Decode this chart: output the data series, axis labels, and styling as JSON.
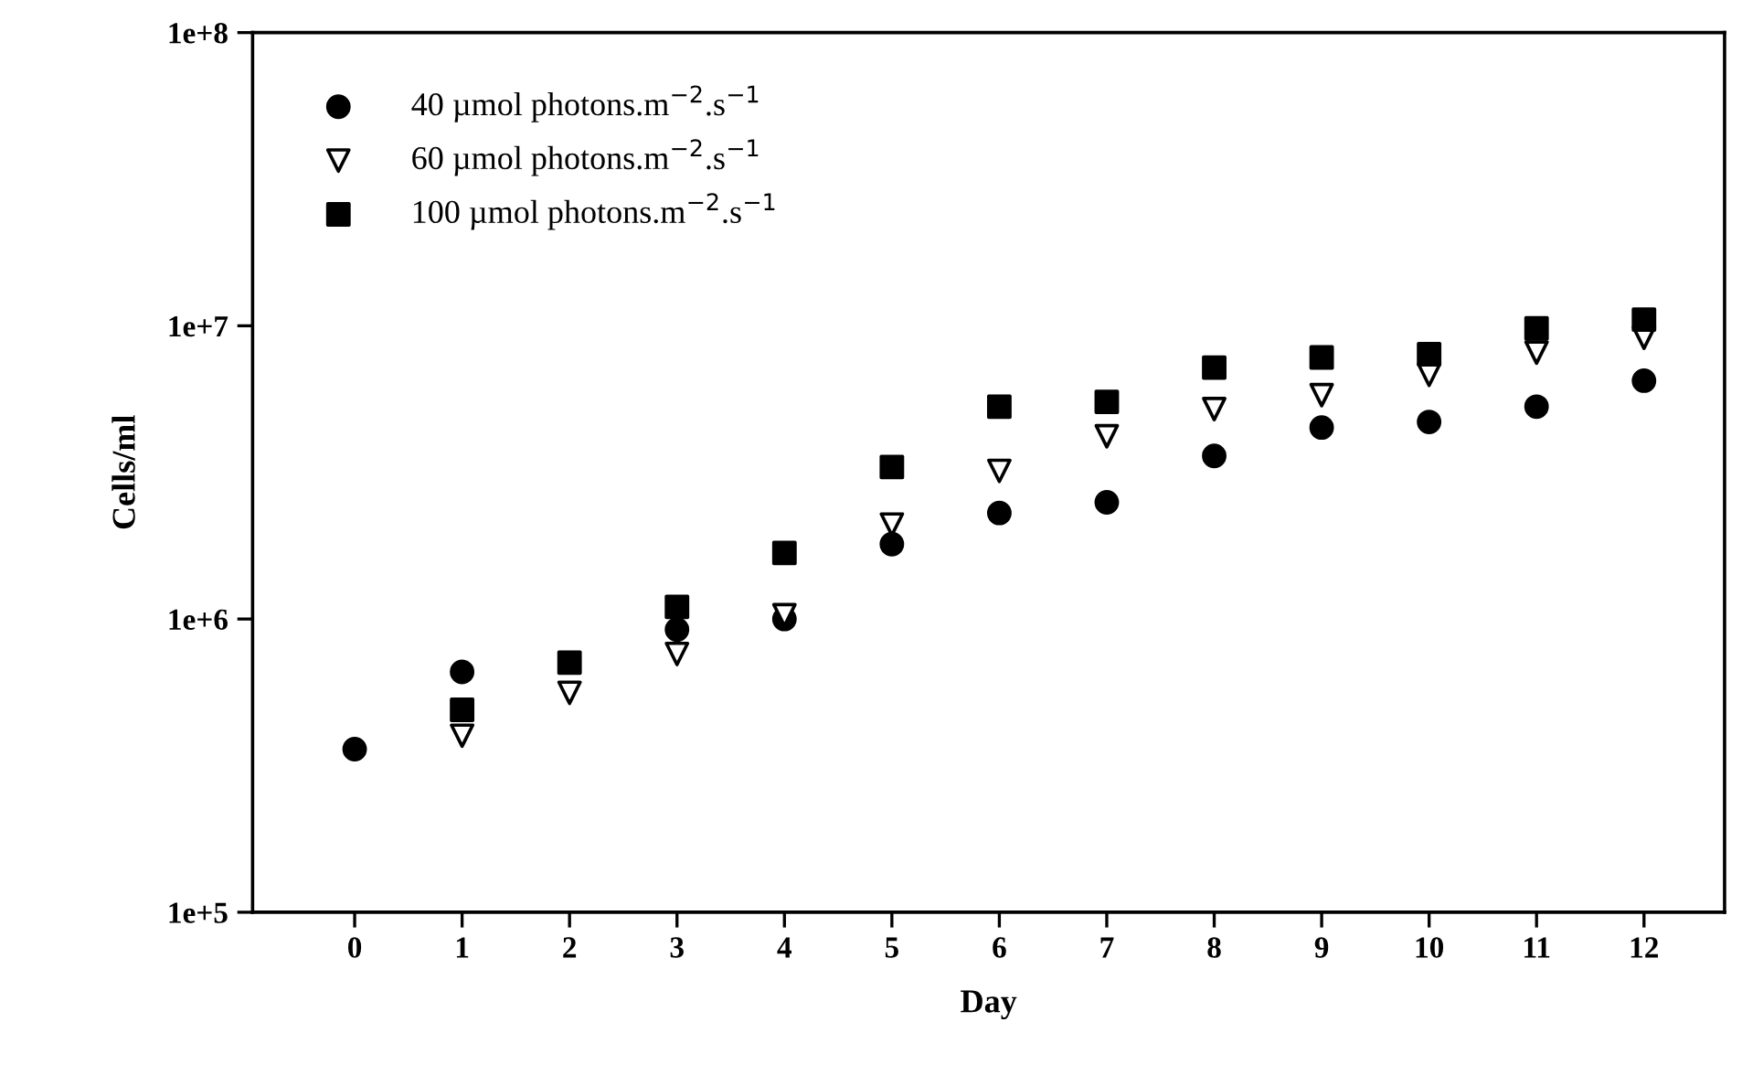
{
  "chart_data": {
    "type": "scatter",
    "xlabel": "Day",
    "ylabel": "Cells/ml",
    "log": "y",
    "grid": false,
    "legend": "top left",
    "x": [
      0,
      1,
      2,
      3,
      4,
      5,
      6,
      7,
      8,
      9,
      10,
      11,
      12
    ],
    "xlim": [
      -0.95,
      12.75
    ],
    "xticks": [
      0,
      1,
      2,
      3,
      4,
      5,
      6,
      7,
      8,
      9,
      10,
      11,
      12
    ],
    "ylim": [
      100000,
      100000000
    ],
    "yticks": [
      {
        "value": 100000,
        "label": "1e+5"
      },
      {
        "value": 1000000,
        "label": "1e+6"
      },
      {
        "value": 10000000,
        "label": "1e+7"
      },
      {
        "value": 100000000,
        "label": "1e+8"
      }
    ],
    "series": [
      {
        "name": "40 µmol photons.m$^{−2}$.s$^{−1}$",
        "color": "#000000",
        "marker": "circle",
        "values": [
          360000,
          660000,
          null,
          920000,
          1000000,
          1800000,
          2300000,
          2500000,
          3600000,
          4500000,
          4700000,
          5300000,
          6500000
        ]
      },
      {
        "name": "60 µmol photons.m$^{−2}$.s$^{−1}$",
        "color": "#ffffff",
        "marker": "triangle",
        "values": [
          null,
          400000,
          560000,
          760000,
          1030000,
          2100000,
          3200000,
          4200000,
          5200000,
          5800000,
          6800000,
          8100000,
          9100000
        ]
      },
      {
        "name": "100 µmol photons.m$^{−2}$.s$^{−1}$",
        "color": "#000000",
        "marker": "square",
        "values": [
          null,
          490000,
          710000,
          1100000,
          1680000,
          3300000,
          5300000,
          5500000,
          7200000,
          7800000,
          8000000,
          9800000,
          10500000
        ]
      }
    ]
  }
}
